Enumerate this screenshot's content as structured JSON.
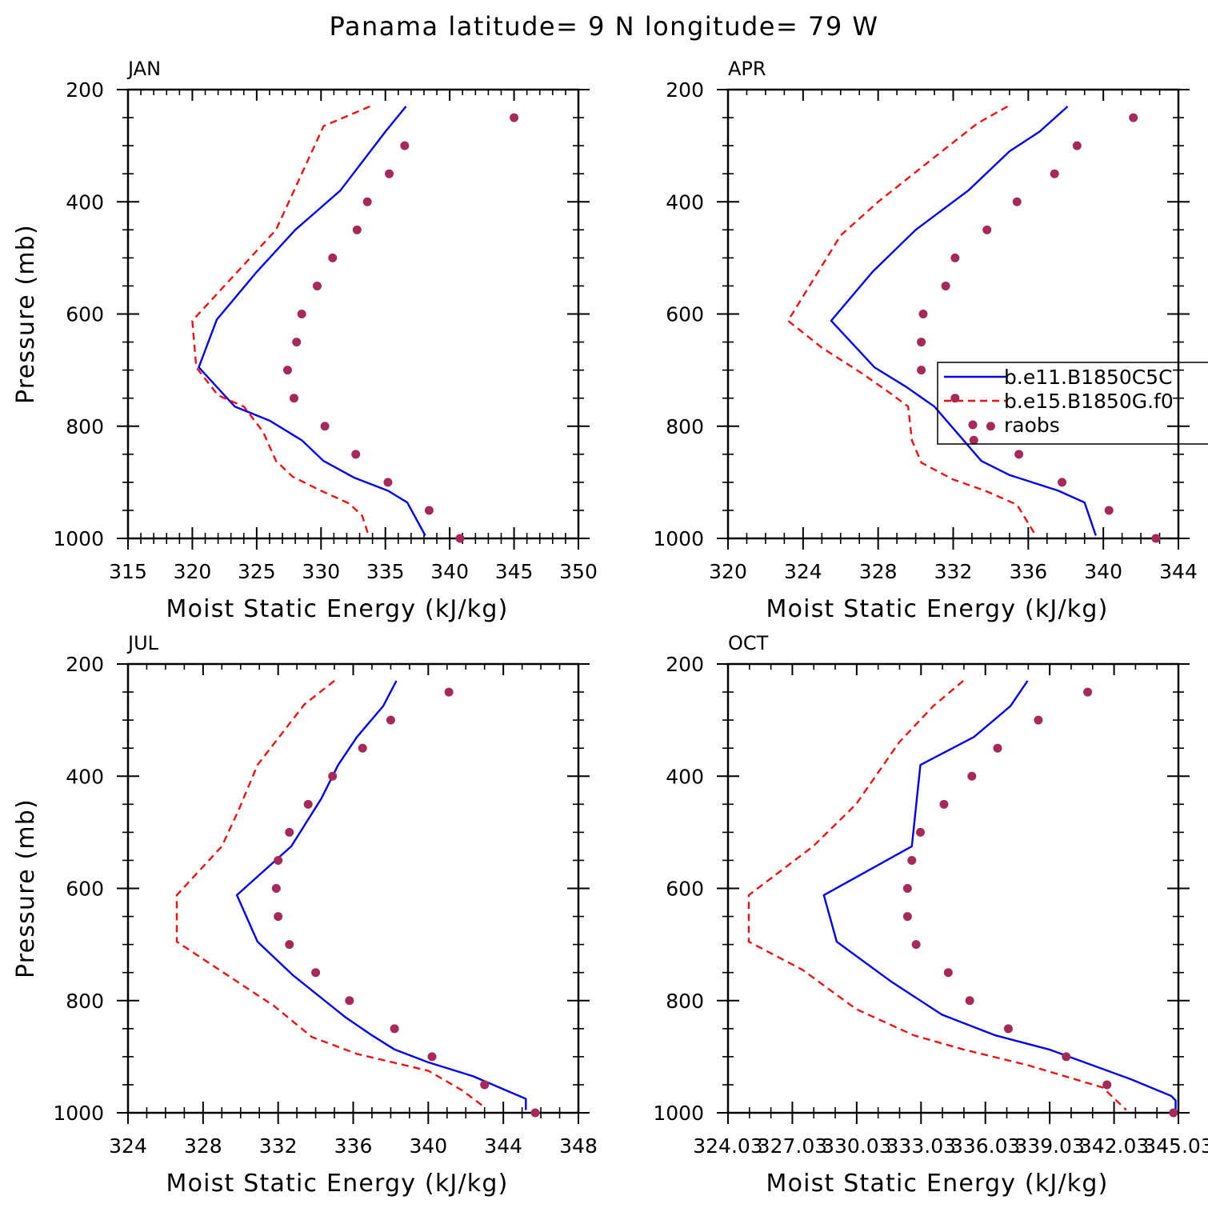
{
  "title": "Panama  latitude= 9 N longitude= 79 W",
  "colors": {
    "model1": "#0000ee",
    "model2": "#ee1111",
    "obs": "#a52a5a"
  },
  "legend": {
    "entries": [
      {
        "label": "b.e11.B1850C5C",
        "style": "solid",
        "color": "#0000ee"
      },
      {
        "label": "b.e15.B1850G.f0",
        "style": "dashed",
        "color": "#ee1111"
      },
      {
        "label": "raobs",
        "style": "marker",
        "color": "#a52a5a"
      }
    ]
  },
  "chart_data": [
    {
      "type": "line",
      "panel": "JAN",
      "xlabel": "Moist Static Energy (kJ/kg)",
      "ylabel": "Pressure (mb)",
      "xlim": [
        315,
        350
      ],
      "ylim": [
        1000,
        200
      ],
      "xticks": [
        315,
        320,
        325,
        330,
        335,
        340,
        345,
        350
      ],
      "xtick_labels": [
        "315",
        "320",
        "325",
        "330",
        "335",
        "340",
        "345",
        "350"
      ],
      "xminor": 5,
      "yticks": [
        200,
        400,
        600,
        800,
        1000
      ],
      "yminor": 4,
      "show_legend": false,
      "series": [
        {
          "name": "b.e11.B1850C5C",
          "style": "solid",
          "color": "#0000ee",
          "x": [
            336.6,
            335.0,
            331.5,
            328.0,
            325.0,
            321.9,
            320.5,
            323.3,
            326.0,
            328.5,
            330.2,
            332.6,
            335.2,
            336.7,
            338.1
          ],
          "y": [
            230,
            275,
            380,
            450,
            525,
            610,
            695,
            765,
            790,
            825,
            862,
            892,
            915,
            936,
            995
          ]
        },
        {
          "name": "b.e15.B1850G.f0",
          "style": "dashed",
          "color": "#ee1111",
          "x": [
            333.8,
            330.2,
            326.5,
            320.0,
            320.3,
            322.0,
            324.0,
            325.5,
            326.5,
            327.8,
            330.0,
            332.2,
            333.2,
            333.7
          ],
          "y": [
            230,
            265,
            450,
            612,
            695,
            745,
            765,
            810,
            862,
            890,
            915,
            938,
            960,
            995
          ]
        },
        {
          "name": "raobs",
          "style": "marker",
          "color": "#a52a5a",
          "x": [
            345.0,
            336.5,
            335.3,
            333.6,
            332.8,
            330.9,
            329.7,
            328.5,
            328.1,
            327.4,
            327.9,
            330.3,
            332.7,
            335.2,
            338.4,
            340.8
          ],
          "y": [
            250,
            300,
            350,
            400,
            450,
            500,
            550,
            600,
            650,
            700,
            750,
            800,
            850,
            900,
            950,
            1000
          ]
        }
      ]
    },
    {
      "type": "line",
      "panel": "APR",
      "xlabel": "Moist Static Energy (kJ/kg)",
      "ylabel": "",
      "xlim": [
        320,
        344
      ],
      "ylim": [
        1000,
        200
      ],
      "xticks": [
        320,
        324,
        328,
        332,
        336,
        340,
        344
      ],
      "xtick_labels": [
        "320",
        "324",
        "328",
        "332",
        "336",
        "340",
        "344"
      ],
      "xminor": 4,
      "yticks": [
        200,
        400,
        600,
        800,
        1000
      ],
      "yminor": 4,
      "show_legend": true,
      "series": [
        {
          "name": "b.e11.B1850C5C",
          "style": "solid",
          "color": "#0000ee",
          "x": [
            338.1,
            336.6,
            335.0,
            332.8,
            330.0,
            327.7,
            325.5,
            327.8,
            329.5,
            331.0,
            333.5,
            335.0,
            337.6,
            339.0,
            339.6
          ],
          "y": [
            230,
            275,
            310,
            380,
            450,
            525,
            612,
            695,
            730,
            765,
            862,
            887,
            915,
            936,
            995
          ]
        },
        {
          "name": "b.e15.B1850G.f0",
          "style": "dashed",
          "color": "#ee1111",
          "x": [
            334.9,
            333.3,
            331.4,
            328.0,
            326.0,
            324.8,
            323.2,
            325.0,
            327.1,
            328.6,
            329.6,
            329.8,
            330.3,
            332.0,
            333.7,
            335.4,
            336.4
          ],
          "y": [
            230,
            260,
            310,
            400,
            460,
            525,
            612,
            660,
            705,
            740,
            765,
            825,
            865,
            895,
            915,
            940,
            995
          ]
        },
        {
          "name": "raobs",
          "style": "marker",
          "color": "#a52a5a",
          "x": [
            341.6,
            338.6,
            337.4,
            335.4,
            333.8,
            332.1,
            331.6,
            330.4,
            330.3,
            330.3,
            332.1,
            334.0,
            333.1,
            335.5,
            337.8,
            340.3,
            342.8
          ],
          "y": [
            250,
            300,
            350,
            400,
            450,
            500,
            550,
            600,
            650,
            700,
            750,
            800,
            825,
            850,
            900,
            950,
            1000
          ]
        }
      ]
    },
    {
      "type": "line",
      "panel": "JUL",
      "xlabel": "Moist Static Energy (kJ/kg)",
      "ylabel": "Pressure (mb)",
      "xlim": [
        324,
        348
      ],
      "ylim": [
        1000,
        200
      ],
      "xticks": [
        324,
        328,
        332,
        336,
        340,
        344,
        348
      ],
      "xtick_labels": [
        "324",
        "328",
        "332",
        "336",
        "340",
        "344",
        "348"
      ],
      "xminor": 4,
      "yticks": [
        200,
        400,
        600,
        800,
        1000
      ],
      "yminor": 4,
      "show_legend": false,
      "series": [
        {
          "name": "b.e11.B1850C5C",
          "style": "solid",
          "color": "#0000ee",
          "x": [
            338.3,
            337.6,
            336.2,
            335.2,
            334.3,
            332.7,
            329.8,
            330.9,
            332.8,
            335.6,
            337.0,
            338.2,
            340.0,
            342.4,
            345.2,
            345.2
          ],
          "y": [
            230,
            275,
            330,
            380,
            440,
            525,
            612,
            695,
            755,
            830,
            862,
            887,
            910,
            935,
            975,
            995
          ]
        },
        {
          "name": "b.e15.B1850G.f0",
          "style": "dashed",
          "color": "#ee1111",
          "x": [
            335.0,
            333.4,
            330.9,
            329.9,
            329.0,
            326.6,
            326.6,
            331.8,
            333.8,
            336.2,
            340.0,
            341.8,
            343.0
          ],
          "y": [
            230,
            272,
            380,
            460,
            525,
            612,
            695,
            810,
            865,
            895,
            925,
            960,
            990
          ]
        },
        {
          "name": "raobs",
          "style": "marker",
          "color": "#a52a5a",
          "x": [
            341.1,
            338.0,
            336.5,
            334.9,
            333.6,
            332.6,
            332.0,
            331.9,
            332.0,
            332.6,
            334.0,
            335.8,
            338.2,
            340.2,
            343.0,
            345.7
          ],
          "y": [
            250,
            300,
            350,
            400,
            450,
            500,
            550,
            600,
            650,
            700,
            750,
            800,
            850,
            900,
            950,
            1000
          ]
        }
      ]
    },
    {
      "type": "line",
      "panel": "OCT",
      "xlabel": "Moist Static Energy (kJ/kg)",
      "ylabel": "",
      "xlim": [
        324.03,
        345.03
      ],
      "ylim": [
        1000,
        200
      ],
      "xticks": [
        324.03,
        327.03,
        330.03,
        333.03,
        336.03,
        339.03,
        342.03,
        345.03
      ],
      "xtick_labels": [
        "324.03",
        "327.03",
        "330.03",
        "333.03",
        "336.03",
        "339.03",
        "342.03",
        "345.03"
      ],
      "xminor": 3,
      "yticks": [
        200,
        400,
        600,
        800,
        1000
      ],
      "yminor": 4,
      "show_legend": false,
      "series": [
        {
          "name": "b.e11.B1850C5C",
          "style": "solid",
          "color": "#0000ee",
          "x": [
            338.0,
            337.2,
            335.5,
            333.0,
            332.6,
            328.5,
            329.1,
            331.6,
            334.0,
            336.5,
            339.0,
            342.8,
            344.7,
            344.9,
            344.9
          ],
          "y": [
            230,
            275,
            330,
            380,
            525,
            612,
            695,
            765,
            825,
            862,
            887,
            940,
            970,
            978,
            1000
          ]
        },
        {
          "name": "b.e15.B1850G.f0",
          "style": "dashed",
          "color": "#ee1111",
          "x": [
            335.0,
            333.6,
            332.0,
            330.0,
            328.0,
            325.0,
            325.0,
            327.5,
            330.0,
            332.7,
            335.0,
            338.0,
            341.5,
            342.6
          ],
          "y": [
            230,
            275,
            340,
            450,
            525,
            612,
            695,
            745,
            815,
            862,
            887,
            915,
            955,
            995
          ]
        },
        {
          "name": "raobs",
          "style": "marker",
          "color": "#a52a5a",
          "x": [
            340.8,
            338.5,
            336.6,
            335.4,
            334.1,
            333.0,
            332.6,
            332.4,
            332.4,
            332.8,
            334.3,
            335.3,
            337.1,
            339.8,
            341.7,
            344.8
          ],
          "y": [
            250,
            300,
            350,
            400,
            450,
            500,
            550,
            600,
            650,
            700,
            750,
            800,
            850,
            900,
            950,
            1000
          ]
        }
      ]
    }
  ]
}
